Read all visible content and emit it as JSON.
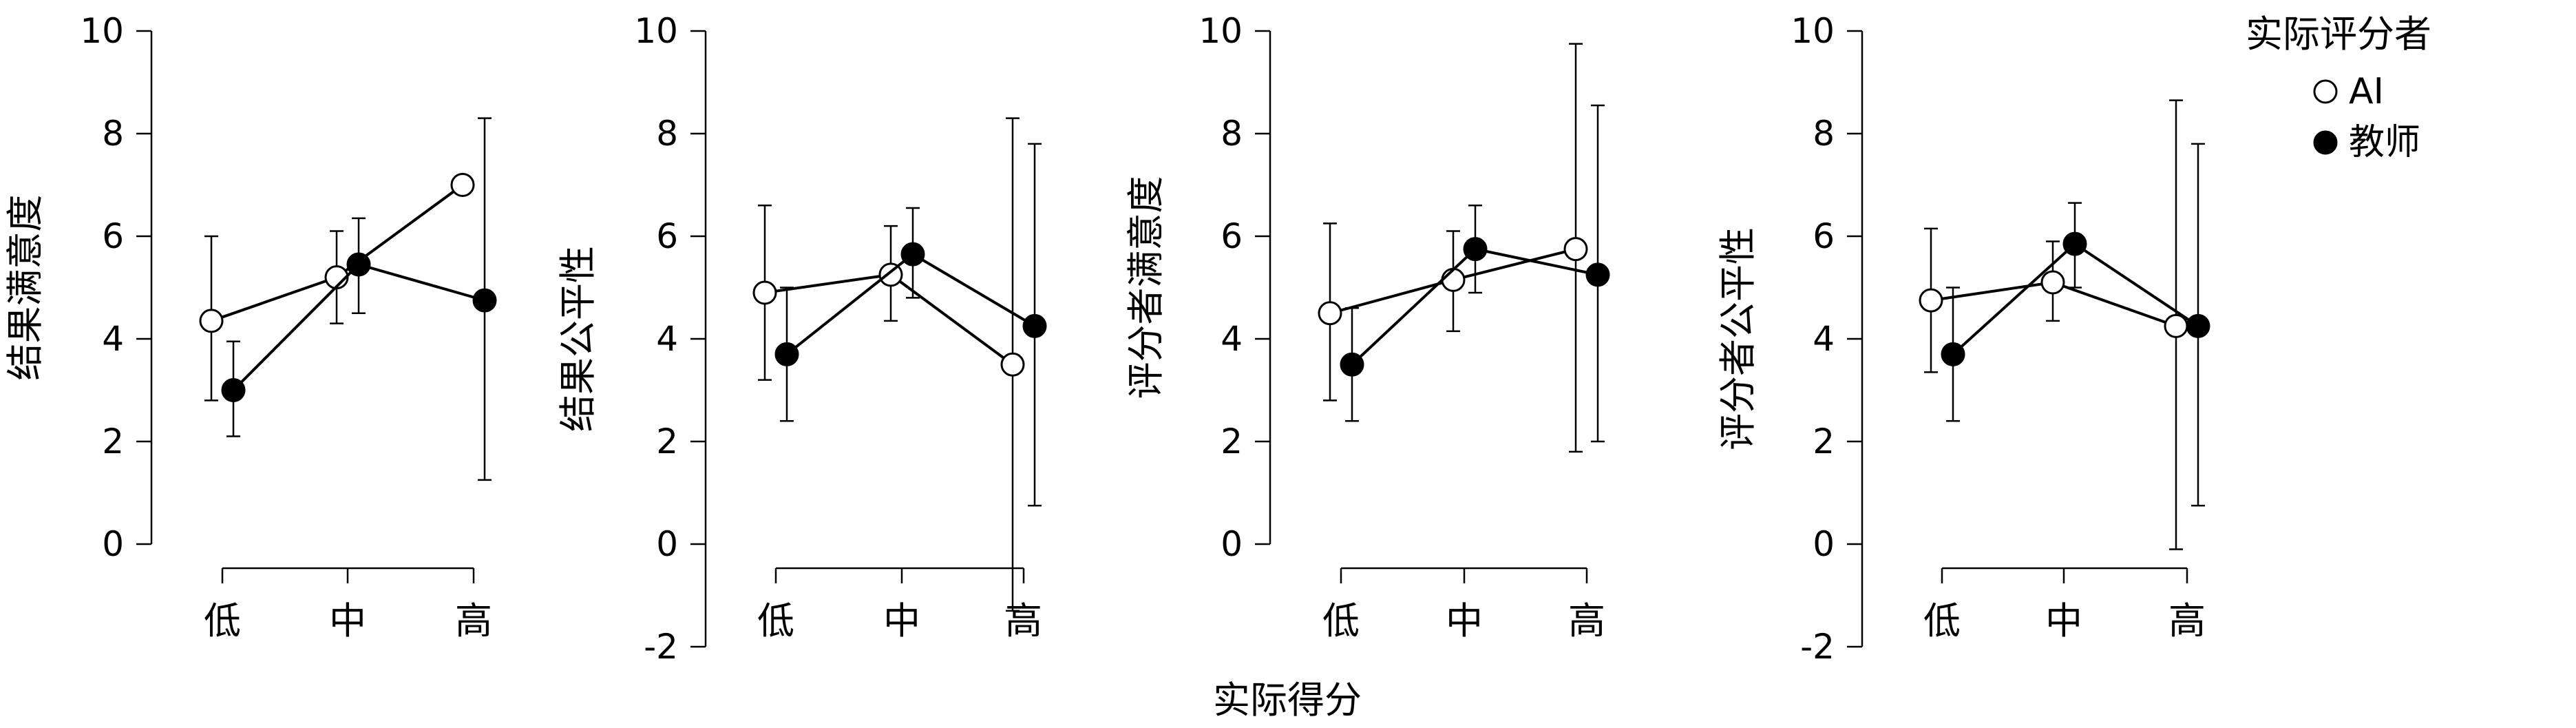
{
  "chart_data": [
    {
      "type": "line",
      "ylabel": "结果满意度",
      "categories": [
        "低",
        "中",
        "高"
      ],
      "yticks": [
        "0",
        "2",
        "4",
        "6",
        "8",
        "10"
      ],
      "ylim": [
        0,
        10
      ],
      "series": [
        {
          "name": "AI",
          "values": [
            4.35,
            5.2,
            7.0
          ],
          "err_low": [
            2.8,
            4.3,
            null
          ],
          "err_high": [
            6.0,
            6.1,
            null
          ]
        },
        {
          "name": "教师",
          "values": [
            3.0,
            5.45,
            4.75
          ],
          "err_low": [
            2.1,
            4.5,
            1.25
          ],
          "err_high": [
            3.95,
            6.35,
            8.3
          ]
        }
      ]
    },
    {
      "type": "line",
      "ylabel": "结果公平性",
      "categories": [
        "低",
        "中",
        "高"
      ],
      "yticks": [
        "-2",
        "0",
        "2",
        "4",
        "6",
        "8",
        "10"
      ],
      "ylim": [
        -2,
        10
      ],
      "series": [
        {
          "name": "AI",
          "values": [
            4.9,
            5.25,
            3.5
          ],
          "err_low": [
            3.2,
            4.35,
            -1.3
          ],
          "err_high": [
            6.6,
            6.2,
            8.3
          ]
        },
        {
          "name": "教师",
          "values": [
            3.7,
            5.65,
            4.25
          ],
          "err_low": [
            2.4,
            4.8,
            0.75
          ],
          "err_high": [
            5.0,
            6.55,
            7.8
          ]
        }
      ]
    },
    {
      "type": "line",
      "ylabel": "评分者满意度",
      "categories": [
        "低",
        "中",
        "高"
      ],
      "yticks": [
        "0",
        "2",
        "4",
        "6",
        "8",
        "10"
      ],
      "ylim": [
        0,
        10
      ],
      "series": [
        {
          "name": "AI",
          "values": [
            4.5,
            5.15,
            5.75
          ],
          "err_low": [
            2.8,
            4.15,
            1.8
          ],
          "err_high": [
            6.25,
            6.1,
            9.75
          ]
        },
        {
          "name": "教师",
          "values": [
            3.5,
            5.75,
            5.25
          ],
          "err_low": [
            2.4,
            4.9,
            2.0
          ],
          "err_high": [
            4.6,
            6.6,
            8.55
          ]
        }
      ]
    },
    {
      "type": "line",
      "ylabel": "评分者公平性",
      "categories": [
        "低",
        "中",
        "高"
      ],
      "yticks": [
        "-2",
        "0",
        "2",
        "4",
        "6",
        "8",
        "10"
      ],
      "ylim": [
        -2,
        10
      ],
      "series": [
        {
          "name": "AI",
          "values": [
            4.75,
            5.1,
            4.25
          ],
          "err_low": [
            3.35,
            4.35,
            -0.1
          ],
          "err_high": [
            6.15,
            5.9,
            8.65
          ]
        },
        {
          "name": "教师",
          "values": [
            3.7,
            5.85,
            4.25
          ],
          "err_low": [
            2.4,
            5.0,
            0.75
          ],
          "err_high": [
            5.0,
            6.65,
            7.8
          ]
        }
      ]
    }
  ],
  "xlabel": "实际得分",
  "legend": {
    "title": "实际评分者",
    "placement": "top-right",
    "entries": [
      {
        "label": "AI",
        "marker": "open-circle"
      },
      {
        "label": "教师",
        "marker": "filled-circle"
      }
    ]
  }
}
